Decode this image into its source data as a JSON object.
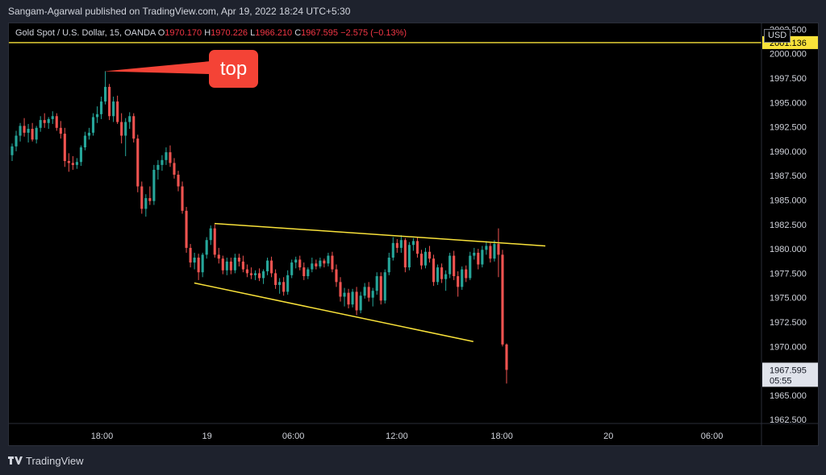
{
  "header": {
    "published_by": "Sangam-Agarwal published on TradingView.com, Apr 19, 2022 18:24 UTC+5:30"
  },
  "legend": {
    "symbol": "Gold Spot / U.S. Dollar, 15, OANDA",
    "open_label": "O",
    "open": "1970.170",
    "high_label": "H",
    "high": "1970.226",
    "low_label": "L",
    "low": "1966.210",
    "close_label": "C",
    "close": "1967.595",
    "change": "−2.575 (−0.13%)"
  },
  "currency": "USD",
  "footer": {
    "brand": "TradingView",
    "logo_icon": "tradingview-logo-icon"
  },
  "colors": {
    "up": "#26a69a",
    "down": "#ef5350",
    "annotation": "#f9e23a",
    "callout": "#f44336"
  },
  "chart_data": {
    "type": "candlestick",
    "title": "",
    "y_ticks": [
      "2002.500",
      "2000.000",
      "1997.500",
      "1995.000",
      "1992.500",
      "1990.000",
      "1987.500",
      "1985.000",
      "1982.500",
      "1980.000",
      "1977.500",
      "1975.000",
      "1972.500",
      "1970.000",
      "1965.000",
      "1962.500"
    ],
    "ylim": [
      1962.0,
      2003.0
    ],
    "x_ticks": [
      "18:00",
      "19",
      "06:00",
      "12:00",
      "18:00",
      "20",
      "06:00"
    ],
    "price_labels": {
      "current_price": "1967.595",
      "countdown": "05:55",
      "horizontal_level": "2001.136"
    },
    "horizontal_line": {
      "value": 2001.136
    },
    "callout": {
      "text": "top",
      "anchor_value": 1998.2
    },
    "trendlines": [
      {
        "name": "upper",
        "from": [
          0.272,
          1982.6
        ],
        "to": [
          0.713,
          1980.3
        ]
      },
      {
        "name": "lower",
        "from": [
          0.245,
          1976.5
        ],
        "to": [
          0.617,
          1970.5
        ]
      },
      {
        "name": "top-pointer",
        "from": [
          0.125,
          1998.2
        ],
        "to": [
          0.262,
          1997.1
        ]
      }
    ],
    "x_positions_note": "x positions expressed as fraction of the time axis",
    "candles": [
      [
        1989.6,
        1990.8,
        1989.0,
        1990.5
      ],
      [
        1990.5,
        1992.1,
        1990.0,
        1991.6
      ],
      [
        1991.6,
        1992.9,
        1991.0,
        1992.6
      ],
      [
        1992.6,
        1993.4,
        1991.5,
        1991.9
      ],
      [
        1991.9,
        1992.8,
        1990.9,
        1992.3
      ],
      [
        1992.3,
        1992.9,
        1991.0,
        1991.2
      ],
      [
        1991.2,
        1992.6,
        1990.8,
        1992.4
      ],
      [
        1992.4,
        1993.6,
        1992.0,
        1993.2
      ],
      [
        1993.2,
        1993.9,
        1992.4,
        1992.9
      ],
      [
        1992.9,
        1993.5,
        1992.3,
        1993.3
      ],
      [
        1993.3,
        1994.1,
        1992.8,
        1993.6
      ],
      [
        1993.6,
        1993.9,
        1992.1,
        1992.4
      ],
      [
        1992.4,
        1993.1,
        1991.3,
        1991.8
      ],
      [
        1991.8,
        1992.4,
        1988.4,
        1989.0
      ],
      [
        1989.0,
        1989.8,
        1987.9,
        1988.8
      ],
      [
        1988.8,
        1989.5,
        1988.1,
        1988.6
      ],
      [
        1988.6,
        1989.3,
        1988.2,
        1988.9
      ],
      [
        1988.9,
        1990.6,
        1988.5,
        1990.4
      ],
      [
        1990.4,
        1992.0,
        1990.1,
        1991.6
      ],
      [
        1991.6,
        1992.4,
        1991.2,
        1991.9
      ],
      [
        1991.9,
        1993.9,
        1991.6,
        1993.5
      ],
      [
        1993.5,
        1994.6,
        1992.9,
        1993.8
      ],
      [
        1993.8,
        1995.6,
        1993.3,
        1995.1
      ],
      [
        1995.1,
        1998.2,
        1994.8,
        1996.6
      ],
      [
        1996.6,
        1996.9,
        1993.2,
        1993.6
      ],
      [
        1993.6,
        1995.6,
        1993.0,
        1995.1
      ],
      [
        1995.1,
        1995.7,
        1992.8,
        1993.0
      ],
      [
        1993.0,
        1993.9,
        1990.8,
        1991.6
      ],
      [
        1991.6,
        1993.4,
        1989.5,
        1993.0
      ],
      [
        1993.0,
        1994.0,
        1992.3,
        1993.6
      ],
      [
        1993.6,
        1993.9,
        1990.9,
        1991.3
      ],
      [
        1991.3,
        1991.7,
        1985.8,
        1986.4
      ],
      [
        1986.4,
        1986.9,
        1983.6,
        1984.1
      ],
      [
        1984.1,
        1985.6,
        1983.3,
        1985.2
      ],
      [
        1985.2,
        1986.4,
        1984.5,
        1984.9
      ],
      [
        1984.9,
        1988.6,
        1984.5,
        1988.1
      ],
      [
        1988.1,
        1989.1,
        1987.1,
        1988.6
      ],
      [
        1988.6,
        1989.6,
        1988.0,
        1989.1
      ],
      [
        1989.1,
        1990.4,
        1988.6,
        1989.9
      ],
      [
        1989.9,
        1990.6,
        1988.4,
        1988.8
      ],
      [
        1988.8,
        1989.3,
        1987.2,
        1987.6
      ],
      [
        1987.6,
        1988.0,
        1985.9,
        1986.4
      ],
      [
        1986.4,
        1986.9,
        1983.6,
        1983.9
      ],
      [
        1983.9,
        1984.3,
        1979.6,
        1980.1
      ],
      [
        1980.1,
        1980.5,
        1978.1,
        1978.6
      ],
      [
        1978.6,
        1979.6,
        1977.9,
        1979.1
      ],
      [
        1979.1,
        1979.5,
        1976.8,
        1977.6
      ],
      [
        1977.6,
        1979.6,
        1977.1,
        1979.4
      ],
      [
        1979.4,
        1981.2,
        1979.0,
        1980.9
      ],
      [
        1980.9,
        1982.4,
        1980.4,
        1982.1
      ],
      [
        1982.1,
        1982.5,
        1979.1,
        1979.4
      ],
      [
        1979.4,
        1980.1,
        1978.5,
        1979.0
      ],
      [
        1979.0,
        1979.3,
        1977.4,
        1977.8
      ],
      [
        1977.8,
        1979.1,
        1977.3,
        1978.7
      ],
      [
        1978.7,
        1979.1,
        1977.4,
        1977.8
      ],
      [
        1977.8,
        1979.5,
        1977.5,
        1979.1
      ],
      [
        1979.1,
        1979.5,
        1978.2,
        1978.7
      ],
      [
        1978.7,
        1979.3,
        1977.6,
        1977.9
      ],
      [
        1977.9,
        1978.4,
        1977.1,
        1977.5
      ],
      [
        1977.5,
        1978.1,
        1976.9,
        1977.3
      ],
      [
        1977.3,
        1977.8,
        1976.8,
        1977.5
      ],
      [
        1977.5,
        1978.0,
        1976.7,
        1977.0
      ],
      [
        1977.0,
        1977.9,
        1976.4,
        1977.7
      ],
      [
        1977.7,
        1979.1,
        1977.3,
        1978.8
      ],
      [
        1978.8,
        1979.2,
        1977.1,
        1977.5
      ],
      [
        1977.5,
        1977.9,
        1975.9,
        1976.3
      ],
      [
        1976.3,
        1977.0,
        1975.4,
        1976.6
      ],
      [
        1976.6,
        1977.1,
        1975.2,
        1975.6
      ],
      [
        1975.6,
        1977.8,
        1975.3,
        1977.3
      ],
      [
        1977.3,
        1978.9,
        1977.0,
        1978.6
      ],
      [
        1978.6,
        1979.2,
        1978.0,
        1978.9
      ],
      [
        1978.9,
        1979.3,
        1977.8,
        1978.1
      ],
      [
        1978.1,
        1978.6,
        1976.8,
        1977.2
      ],
      [
        1977.2,
        1978.1,
        1976.9,
        1977.9
      ],
      [
        1977.9,
        1979.1,
        1977.6,
        1978.5
      ],
      [
        1978.5,
        1978.9,
        1977.9,
        1978.2
      ],
      [
        1978.2,
        1979.1,
        1978.0,
        1978.8
      ],
      [
        1978.8,
        1979.0,
        1978.1,
        1978.5
      ],
      [
        1978.5,
        1979.6,
        1978.2,
        1979.3
      ],
      [
        1979.3,
        1979.7,
        1977.6,
        1977.9
      ],
      [
        1977.9,
        1978.4,
        1976.1,
        1976.6
      ],
      [
        1976.6,
        1977.1,
        1974.6,
        1975.1
      ],
      [
        1975.1,
        1976.0,
        1974.1,
        1975.5
      ],
      [
        1975.5,
        1975.9,
        1973.9,
        1974.3
      ],
      [
        1974.3,
        1975.9,
        1974.0,
        1975.6
      ],
      [
        1975.6,
        1976.1,
        1973.2,
        1973.7
      ],
      [
        1973.7,
        1975.6,
        1973.4,
        1975.2
      ],
      [
        1975.2,
        1976.5,
        1974.9,
        1976.1
      ],
      [
        1976.1,
        1976.6,
        1974.6,
        1975.0
      ],
      [
        1975.0,
        1976.0,
        1974.1,
        1975.7
      ],
      [
        1975.7,
        1977.6,
        1975.3,
        1977.2
      ],
      [
        1977.2,
        1977.6,
        1974.3,
        1974.7
      ],
      [
        1974.7,
        1977.9,
        1974.4,
        1977.6
      ],
      [
        1977.6,
        1979.6,
        1977.3,
        1979.1
      ],
      [
        1979.1,
        1981.2,
        1978.8,
        1980.6
      ],
      [
        1980.6,
        1981.0,
        1979.6,
        1980.1
      ],
      [
        1980.1,
        1981.4,
        1979.6,
        1980.9
      ],
      [
        1980.9,
        1981.1,
        1977.6,
        1978.1
      ],
      [
        1978.1,
        1980.7,
        1977.8,
        1980.4
      ],
      [
        1980.4,
        1981.1,
        1979.8,
        1980.8
      ],
      [
        1980.8,
        1981.2,
        1979.1,
        1979.5
      ],
      [
        1979.5,
        1979.9,
        1977.9,
        1978.3
      ],
      [
        1978.3,
        1980.1,
        1978.0,
        1979.7
      ],
      [
        1979.7,
        1980.3,
        1978.6,
        1979.0
      ],
      [
        1979.0,
        1979.4,
        1976.2,
        1976.6
      ],
      [
        1976.6,
        1978.4,
        1976.3,
        1978.1
      ],
      [
        1978.1,
        1978.5,
        1976.5,
        1976.9
      ],
      [
        1976.9,
        1977.8,
        1975.7,
        1977.4
      ],
      [
        1977.4,
        1979.6,
        1977.0,
        1979.3
      ],
      [
        1979.3,
        1979.8,
        1976.8,
        1977.2
      ],
      [
        1977.2,
        1977.7,
        1975.1,
        1976.1
      ],
      [
        1976.1,
        1978.2,
        1975.8,
        1977.9
      ],
      [
        1977.9,
        1978.3,
        1976.6,
        1977.0
      ],
      [
        1977.0,
        1979.7,
        1976.8,
        1979.3
      ],
      [
        1979.3,
        1980.1,
        1978.9,
        1979.6
      ],
      [
        1979.6,
        1980.0,
        1977.9,
        1978.4
      ],
      [
        1978.4,
        1980.3,
        1978.1,
        1979.9
      ],
      [
        1979.9,
        1980.8,
        1979.4,
        1980.3
      ],
      [
        1980.3,
        1980.6,
        1978.6,
        1979.0
      ],
      [
        1979.0,
        1980.9,
        1978.7,
        1980.5
      ],
      [
        1980.5,
        1982.1,
        1977.1,
        1979.4
      ],
      [
        1979.4,
        1979.9,
        1970.0,
        1970.2
      ],
      [
        1970.2,
        1970.3,
        1966.2,
        1967.6
      ]
    ]
  }
}
